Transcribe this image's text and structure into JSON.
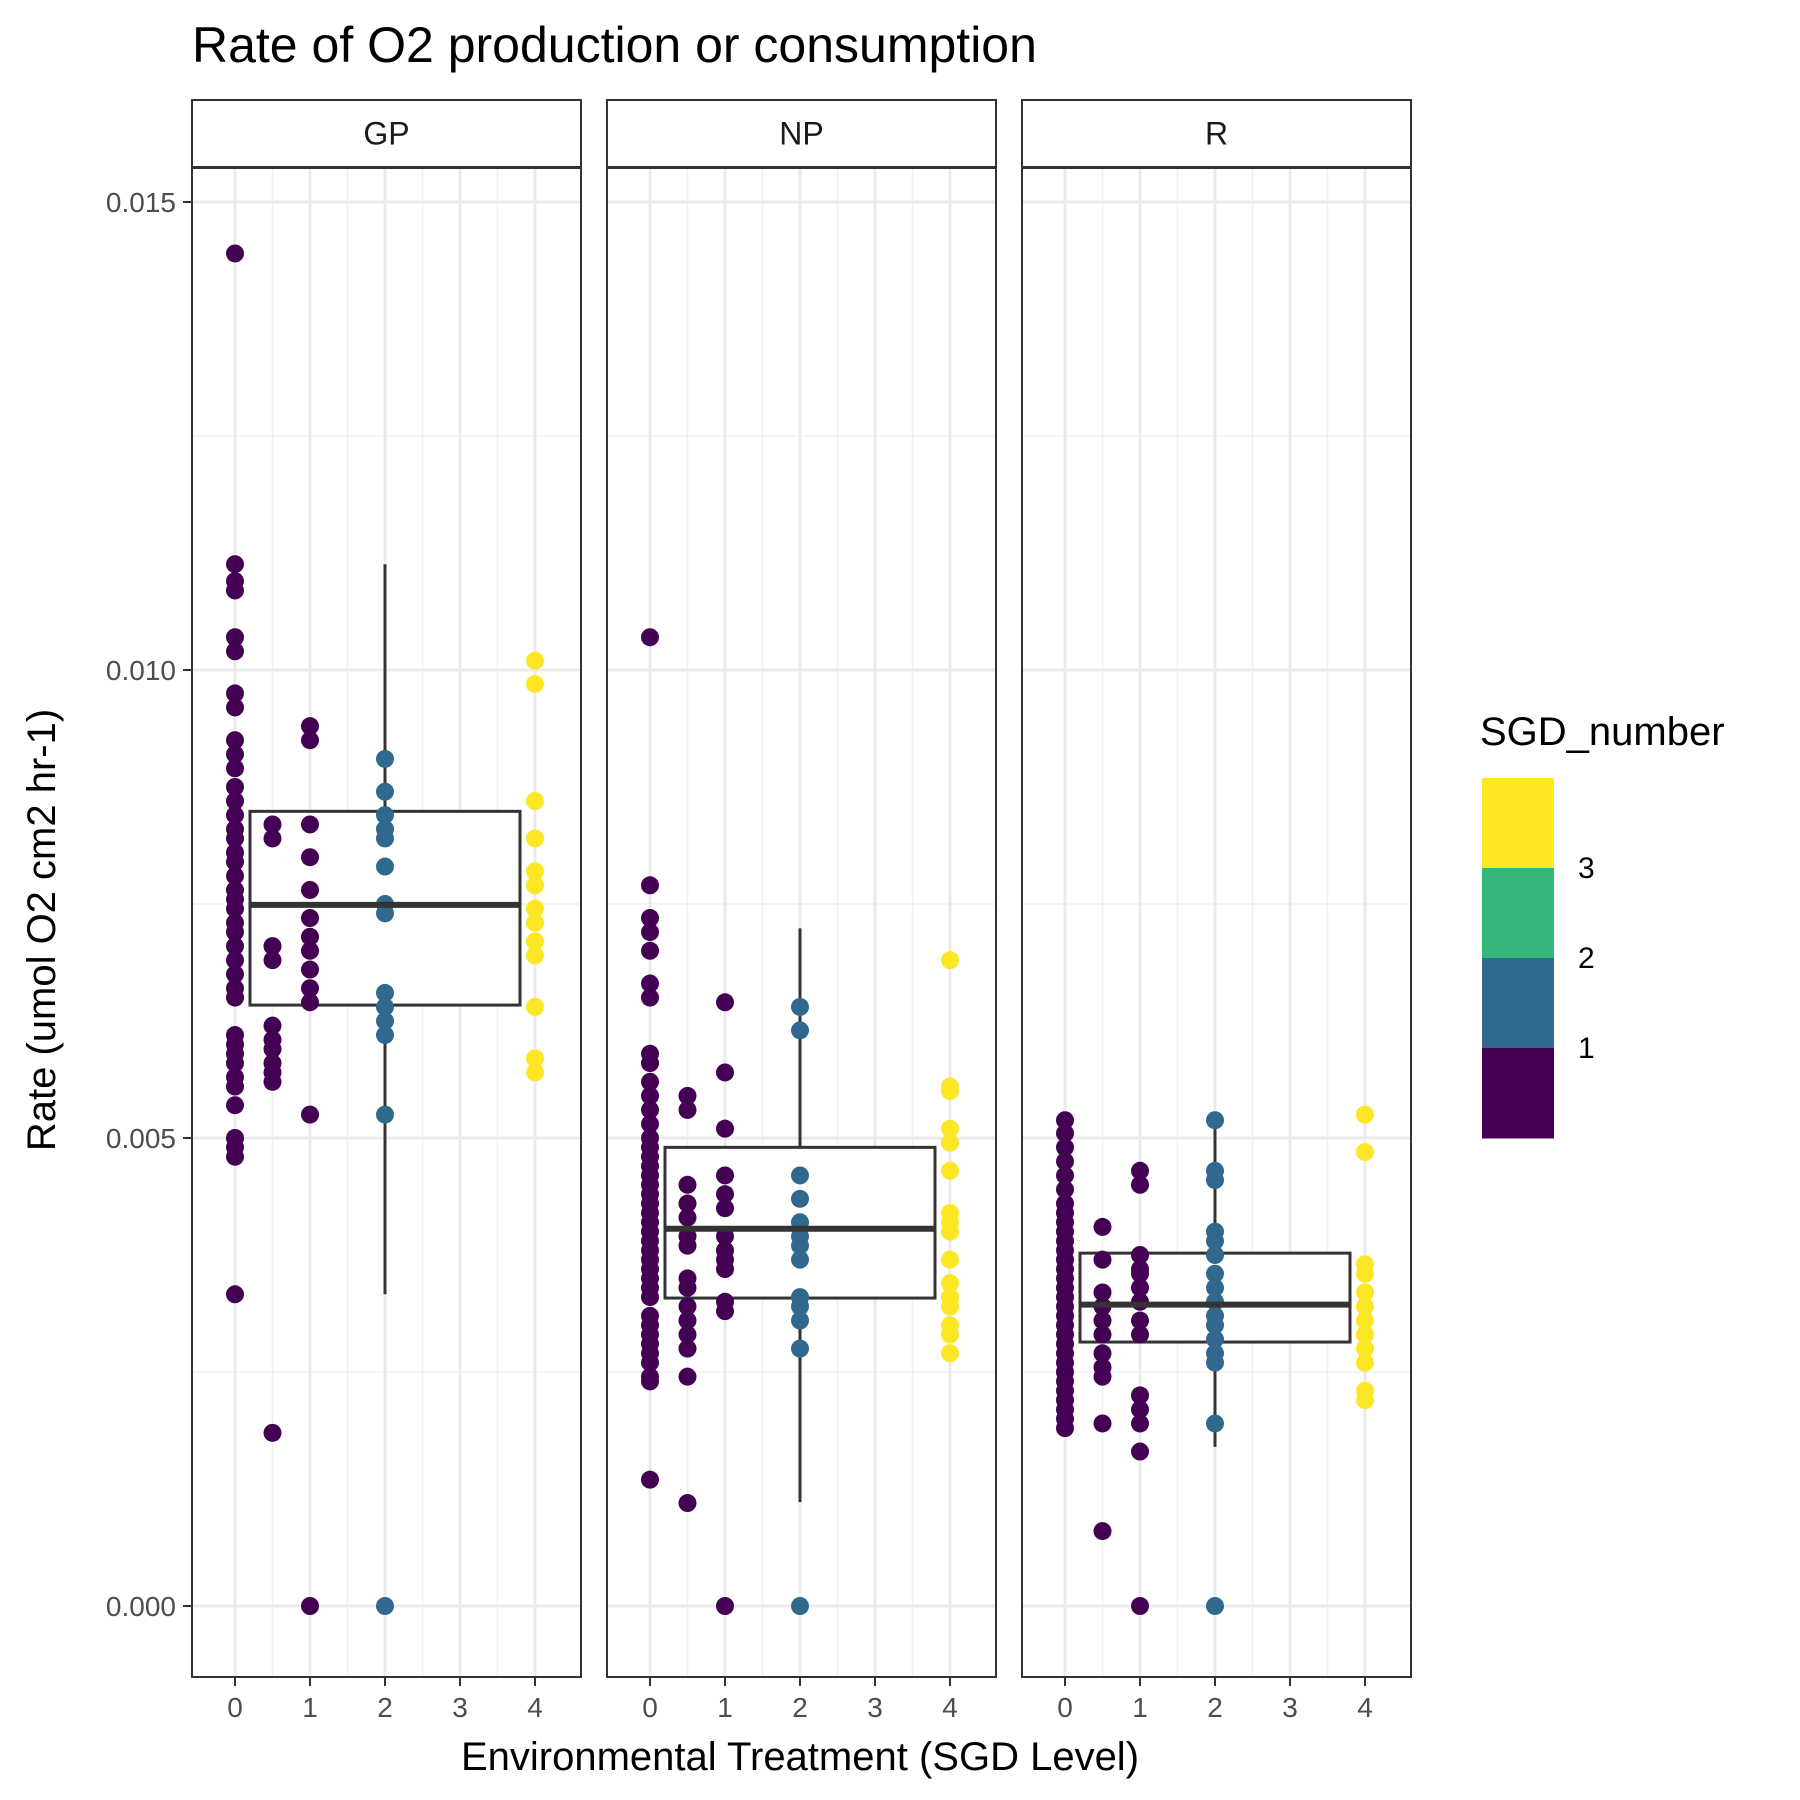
{
  "chart_data": {
    "type": "boxplot-with-points",
    "title": "Rate of O2 production or consumption",
    "xlabel": "Environmental Treatment (SGD Level)",
    "ylabel": "Rate (umol O2 cm2 hr-1)",
    "x_ticks": [
      "0",
      "1",
      "2",
      "3",
      "4"
    ],
    "y_ticks": [
      "0.000",
      "0.005",
      "0.010",
      "0.015"
    ],
    "xlim": [
      -0.5,
      4.5
    ],
    "ylim": [
      -0.00075,
      0.0155
    ],
    "grid": true,
    "legend": {
      "title": "SGD_number",
      "position": "right",
      "labels": [
        "3",
        "2",
        "1"
      ],
      "colors": [
        "#fde725",
        "#35b779",
        "#31688e",
        "#440154"
      ]
    },
    "series_colors": {
      "0": "#440154",
      "0.5": "#440154",
      "1": "#440154",
      "2": "#31688e",
      "4": "#fde725"
    },
    "panels": [
      {
        "name": "GP",
        "box": {
          "x_range": [
            0.2,
            3.8
          ],
          "q1": 0.00642,
          "median": 0.00749,
          "q3": 0.00849,
          "whisker_low": 0.00333,
          "whisker_high": 0.01113
        },
        "points": [
          {
            "x": 0,
            "values": [
              0.01445,
              0.01113,
              0.01095,
              0.01085,
              0.01035,
              0.0102,
              0.00975,
              0.0096,
              0.00925,
              0.0091,
              0.00895,
              0.00875,
              0.0086,
              0.00845,
              0.0083,
              0.0082,
              0.00805,
              0.00795,
              0.0078,
              0.00765,
              0.00755,
              0.00745,
              0.0073,
              0.0072,
              0.00705,
              0.0069,
              0.00675,
              0.0066,
              0.0065,
              0.0061,
              0.006,
              0.0059,
              0.0058,
              0.00565,
              0.00555,
              0.00535,
              0.005,
              0.0049,
              0.0048,
              0.00333
            ]
          },
          {
            "x": 0.5,
            "values": [
              0.00835,
              0.0082,
              0.00705,
              0.0069,
              0.0062,
              0.00605,
              0.00595,
              0.0058,
              0.0057,
              0.0056,
              0.00185
            ]
          },
          {
            "x": 1,
            "values": [
              0.0094,
              0.00925,
              0.00835,
              0.008,
              0.00765,
              0.00735,
              0.00715,
              0.007,
              0.0068,
              0.0066,
              0.00645,
              0.00525,
              0.0
            ]
          },
          {
            "x": 2,
            "values": [
              0.00905,
              0.0087,
              0.00845,
              0.0083,
              0.0082,
              0.0079,
              0.0075,
              0.0074,
              0.00655,
              0.0064,
              0.00625,
              0.0061,
              0.00525,
              0.0
            ]
          },
          {
            "x": 4,
            "values": [
              0.0101,
              0.00985,
              0.0086,
              0.0082,
              0.00785,
              0.0077,
              0.00745,
              0.0073,
              0.0071,
              0.00695,
              0.0064,
              0.00585,
              0.0057
            ]
          }
        ]
      },
      {
        "name": "NP",
        "box": {
          "x_range": [
            0.2,
            3.8
          ],
          "q1": 0.00329,
          "median": 0.00403,
          "q3": 0.0049,
          "whisker_low": 0.00111,
          "whisker_high": 0.00724
        },
        "points": [
          {
            "x": 0,
            "values": [
              0.01035,
              0.0077,
              0.00735,
              0.0072,
              0.007,
              0.00665,
              0.0065,
              0.0059,
              0.0058,
              0.0056,
              0.00545,
              0.0053,
              0.00515,
              0.005,
              0.0049,
              0.0048,
              0.0047,
              0.0046,
              0.0045,
              0.0044,
              0.0043,
              0.0042,
              0.0041,
              0.004,
              0.0039,
              0.0038,
              0.0037,
              0.0036,
              0.0035,
              0.0034,
              0.0033,
              0.0031,
              0.003,
              0.0029,
              0.0028,
              0.0027,
              0.0026,
              0.00245,
              0.0024,
              0.00135
            ]
          },
          {
            "x": 0.5,
            "values": [
              0.00545,
              0.0053,
              0.0045,
              0.0043,
              0.00415,
              0.00395,
              0.00385,
              0.0035,
              0.0034,
              0.0032,
              0.00305,
              0.0029,
              0.00275,
              0.00245,
              0.0011
            ]
          },
          {
            "x": 1,
            "values": [
              0.00645,
              0.0057,
              0.0051,
              0.0046,
              0.0044,
              0.00425,
              0.00395,
              0.0038,
              0.0037,
              0.0036,
              0.00325,
              0.00315,
              0.0
            ]
          },
          {
            "x": 2,
            "values": [
              0.0064,
              0.00615,
              0.0046,
              0.00435,
              0.0041,
              0.00395,
              0.00385,
              0.0037,
              0.0033,
              0.0032,
              0.00305,
              0.00275,
              0.0
            ]
          },
          {
            "x": 4,
            "values": [
              0.0069,
              0.00555,
              0.0055,
              0.0051,
              0.00495,
              0.00465,
              0.0042,
              0.0041,
              0.004,
              0.0037,
              0.00345,
              0.0033,
              0.0032,
              0.003,
              0.0029,
              0.0027
            ]
          }
        ]
      },
      {
        "name": "R",
        "box": {
          "x_range": [
            0.2,
            3.8
          ],
          "q1": 0.00282,
          "median": 0.00322,
          "q3": 0.00377,
          "whisker_low": 0.0017,
          "whisker_high": 0.00519
        },
        "points": [
          {
            "x": 0,
            "values": [
              0.00519,
              0.00505,
              0.0049,
              0.00475,
              0.0046,
              0.00445,
              0.0043,
              0.0042,
              0.0041,
              0.004,
              0.0039,
              0.0038,
              0.0037,
              0.0036,
              0.0035,
              0.0034,
              0.0033,
              0.0032,
              0.0031,
              0.003,
              0.0029,
              0.0028,
              0.0027,
              0.0026,
              0.0025,
              0.0024,
              0.0023,
              0.0022,
              0.0021,
              0.002,
              0.0019
            ]
          },
          {
            "x": 0.5,
            "values": [
              0.00405,
              0.0037,
              0.00335,
              0.0032,
              0.00305,
              0.0029,
              0.0027,
              0.00255,
              0.00245,
              0.00195,
              0.0008
            ]
          },
          {
            "x": 1,
            "values": [
              0.00465,
              0.0045,
              0.00375,
              0.0036,
              0.00355,
              0.0034,
              0.00325,
              0.00305,
              0.0029,
              0.00225,
              0.0021,
              0.00195,
              0.00165,
              0.0
            ]
          },
          {
            "x": 2,
            "values": [
              0.00519,
              0.00465,
              0.00455,
              0.004,
              0.0039,
              0.00375,
              0.00355,
              0.0034,
              0.00325,
              0.0031,
              0.003,
              0.00285,
              0.0027,
              0.0026,
              0.00195,
              0.0
            ]
          },
          {
            "x": 4,
            "values": [
              0.00525,
              0.00485,
              0.00365,
              0.00355,
              0.00335,
              0.0032,
              0.00305,
              0.0029,
              0.00275,
              0.0026,
              0.0023,
              0.0022
            ]
          }
        ]
      }
    ]
  }
}
